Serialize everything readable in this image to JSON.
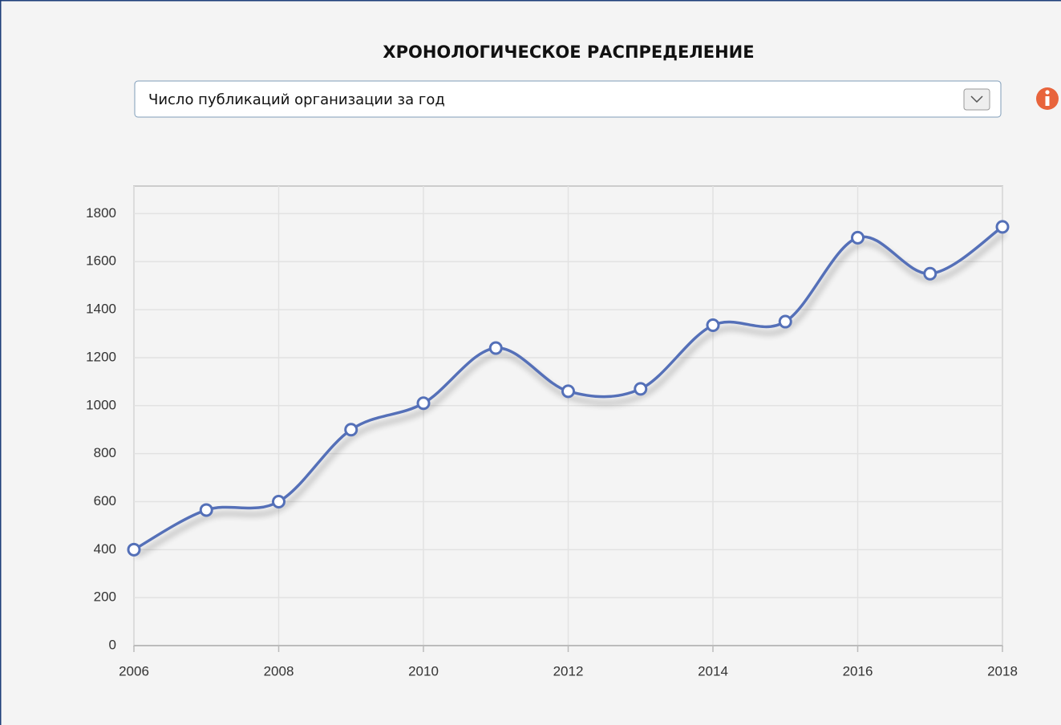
{
  "dropdown_label": "Число публикаций организации за год",
  "chart_data": {
    "type": "line",
    "title": "ХРОНОЛОГИЧЕСКОЕ РАСПРЕДЕЛЕНИЕ",
    "x": [
      2006,
      2007,
      2008,
      2009,
      2010,
      2011,
      2012,
      2013,
      2014,
      2015,
      2016,
      2017,
      2018
    ],
    "series": [
      {
        "name": "Число публикаций",
        "color": "#5470b8",
        "values": [
          400,
          565,
          600,
          900,
          1010,
          1240,
          1060,
          1070,
          1335,
          1350,
          1700,
          1550,
          1745
        ]
      }
    ],
    "xlim": [
      2006,
      2018
    ],
    "xticks": [
      2006,
      2008,
      2010,
      2012,
      2014,
      2016,
      2018
    ],
    "ylim": [
      0,
      1915
    ],
    "yticks": [
      0,
      200,
      400,
      600,
      800,
      1000,
      1200,
      1400,
      1600,
      1800
    ],
    "grid": true
  }
}
